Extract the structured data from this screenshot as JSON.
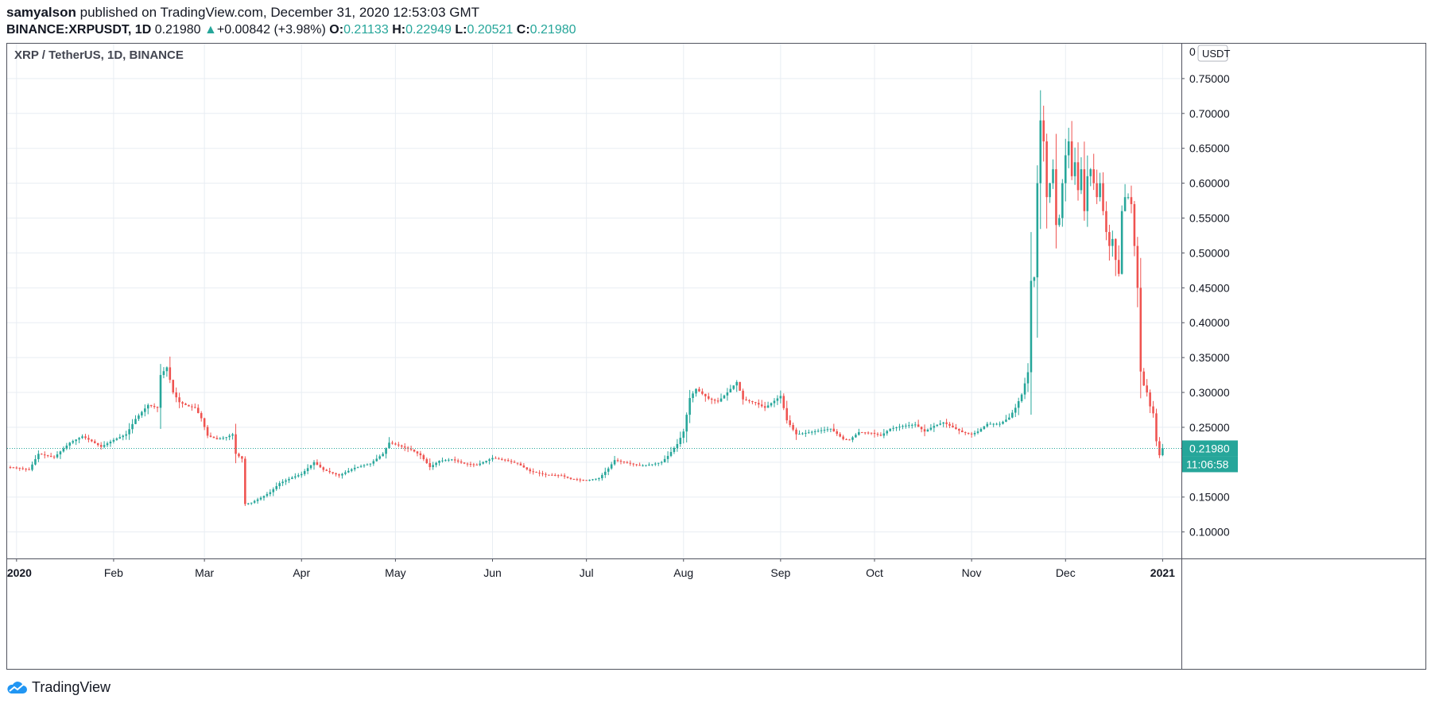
{
  "header": {
    "author": "samyalson",
    "published_text": "published on TradingView.com, December 31, 2020 12:53:03 GMT",
    "symbol": "BINANCE:XRPUSDT, 1D",
    "last": "0.21980",
    "change_arrow": "▲",
    "change": "+0.00842 (+3.98%)",
    "open_label": "O:",
    "open": "0.21133",
    "high_label": "H:",
    "high": "0.22949",
    "low_label": "L:",
    "low": "0.20521",
    "close_label": "C:",
    "close": "0.21980"
  },
  "chart_data": {
    "type": "candlestick",
    "title": "XRP / TetherUS, 1D, BINANCE",
    "currency_badge": "USDT",
    "last_price_label": "0.21980",
    "countdown_label": "11:06:58",
    "y_ticks": [
      "0.10000",
      "0.15000",
      "0.20000",
      "0.25000",
      "0.30000",
      "0.35000",
      "0.40000",
      "0.45000",
      "0.50000",
      "0.55000",
      "0.60000",
      "0.65000",
      "0.70000",
      "0.75000"
    ],
    "y_top_partial": "0",
    "ylim": [
      0.062,
      0.8
    ],
    "x_ticks": [
      {
        "label": "2020",
        "day": 0
      },
      {
        "label": "Feb",
        "day": 31
      },
      {
        "label": "Mar",
        "day": 60
      },
      {
        "label": "Apr",
        "day": 91
      },
      {
        "label": "May",
        "day": 121
      },
      {
        "label": "Jun",
        "day": 152
      },
      {
        "label": "Jul",
        "day": 182
      },
      {
        "label": "Aug",
        "day": 213
      },
      {
        "label": "Sep",
        "day": 244
      },
      {
        "label": "Oct",
        "day": 274
      },
      {
        "label": "Nov",
        "day": 305
      },
      {
        "label": "Dec",
        "day": 335
      },
      {
        "label": "2021",
        "day": 366
      }
    ],
    "xlim_days": [
      -3,
      372
    ],
    "up_color": "#26a69a",
    "down_color": "#ef5350",
    "close_anchors": [
      [
        -3,
        0.193
      ],
      [
        0,
        0.192
      ],
      [
        4,
        0.189
      ],
      [
        7,
        0.212
      ],
      [
        12,
        0.207
      ],
      [
        17,
        0.228
      ],
      [
        21,
        0.237
      ],
      [
        24,
        0.23
      ],
      [
        27,
        0.222
      ],
      [
        31,
        0.232
      ],
      [
        35,
        0.24
      ],
      [
        38,
        0.262
      ],
      [
        42,
        0.282
      ],
      [
        45,
        0.278
      ],
      [
        46,
        0.325
      ],
      [
        48,
        0.336
      ],
      [
        50,
        0.3
      ],
      [
        52,
        0.286
      ],
      [
        55,
        0.28
      ],
      [
        57,
        0.278
      ],
      [
        59,
        0.263
      ],
      [
        61,
        0.238
      ],
      [
        64,
        0.233
      ],
      [
        67,
        0.236
      ],
      [
        69,
        0.24
      ],
      [
        70,
        0.212
      ],
      [
        72,
        0.205
      ],
      [
        73,
        0.14
      ],
      [
        75,
        0.142
      ],
      [
        78,
        0.149
      ],
      [
        81,
        0.157
      ],
      [
        84,
        0.17
      ],
      [
        88,
        0.178
      ],
      [
        91,
        0.183
      ],
      [
        95,
        0.2
      ],
      [
        98,
        0.189
      ],
      [
        103,
        0.181
      ],
      [
        108,
        0.192
      ],
      [
        113,
        0.198
      ],
      [
        117,
        0.212
      ],
      [
        119,
        0.228
      ],
      [
        122,
        0.224
      ],
      [
        126,
        0.218
      ],
      [
        129,
        0.21
      ],
      [
        132,
        0.193
      ],
      [
        135,
        0.202
      ],
      [
        139,
        0.204
      ],
      [
        143,
        0.198
      ],
      [
        147,
        0.196
      ],
      [
        152,
        0.206
      ],
      [
        156,
        0.203
      ],
      [
        160,
        0.198
      ],
      [
        164,
        0.187
      ],
      [
        169,
        0.182
      ],
      [
        174,
        0.181
      ],
      [
        177,
        0.176
      ],
      [
        182,
        0.174
      ],
      [
        186,
        0.177
      ],
      [
        189,
        0.191
      ],
      [
        191,
        0.203
      ],
      [
        195,
        0.199
      ],
      [
        199,
        0.195
      ],
      [
        203,
        0.197
      ],
      [
        206,
        0.2
      ],
      [
        208,
        0.209
      ],
      [
        211,
        0.226
      ],
      [
        213,
        0.244
      ],
      [
        215,
        0.292
      ],
      [
        217,
        0.305
      ],
      [
        221,
        0.291
      ],
      [
        224,
        0.287
      ],
      [
        227,
        0.3
      ],
      [
        230,
        0.315
      ],
      [
        232,
        0.29
      ],
      [
        236,
        0.285
      ],
      [
        239,
        0.278
      ],
      [
        242,
        0.288
      ],
      [
        244,
        0.295
      ],
      [
        246,
        0.26
      ],
      [
        249,
        0.24
      ],
      [
        252,
        0.242
      ],
      [
        256,
        0.245
      ],
      [
        260,
        0.248
      ],
      [
        264,
        0.233
      ],
      [
        266,
        0.232
      ],
      [
        269,
        0.243
      ],
      [
        273,
        0.242
      ],
      [
        276,
        0.238
      ],
      [
        279,
        0.248
      ],
      [
        283,
        0.252
      ],
      [
        287,
        0.254
      ],
      [
        290,
        0.244
      ],
      [
        293,
        0.252
      ],
      [
        296,
        0.257
      ],
      [
        299,
        0.25
      ],
      [
        302,
        0.243
      ],
      [
        305,
        0.24
      ],
      [
        307,
        0.244
      ],
      [
        310,
        0.255
      ],
      [
        314,
        0.255
      ],
      [
        317,
        0.264
      ],
      [
        319,
        0.278
      ],
      [
        321,
        0.297
      ],
      [
        323,
        0.329
      ],
      [
        324,
        0.46
      ],
      [
        325,
        0.465
      ],
      [
        326,
        0.6
      ],
      [
        327,
        0.69
      ],
      [
        328,
        0.66
      ],
      [
        329,
        0.58
      ],
      [
        330,
        0.6
      ],
      [
        331,
        0.62
      ],
      [
        332,
        0.54
      ],
      [
        333,
        0.55
      ],
      [
        334,
        0.6
      ],
      [
        335,
        0.64
      ],
      [
        336,
        0.66
      ],
      [
        337,
        0.61
      ],
      [
        338,
        0.63
      ],
      [
        339,
        0.59
      ],
      [
        340,
        0.62
      ],
      [
        341,
        0.56
      ],
      [
        342,
        0.61
      ],
      [
        343,
        0.62
      ],
      [
        344,
        0.6
      ],
      [
        345,
        0.58
      ],
      [
        346,
        0.6
      ],
      [
        347,
        0.56
      ],
      [
        348,
        0.53
      ],
      [
        349,
        0.51
      ],
      [
        350,
        0.52
      ],
      [
        351,
        0.49
      ],
      [
        352,
        0.47
      ],
      [
        353,
        0.56
      ],
      [
        354,
        0.58
      ],
      [
        355,
        0.58
      ],
      [
        356,
        0.57
      ],
      [
        357,
        0.51
      ],
      [
        358,
        0.45
      ],
      [
        359,
        0.33
      ],
      [
        360,
        0.31
      ],
      [
        361,
        0.3
      ],
      [
        362,
        0.28
      ],
      [
        363,
        0.27
      ],
      [
        364,
        0.23
      ],
      [
        365,
        0.21
      ],
      [
        366,
        0.2198
      ]
    ]
  },
  "footer": {
    "brand": "TradingView"
  }
}
